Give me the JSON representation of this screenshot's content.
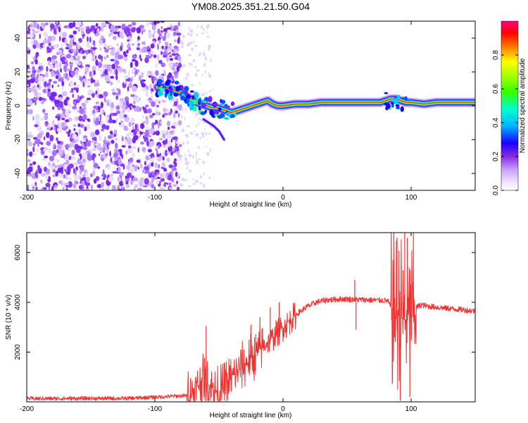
{
  "title": "YM08.2025.351.21.50.G04",
  "chart_data": [
    {
      "type": "heatmap",
      "name": "spectrogram",
      "xlabel": "Height of straight line (km)",
      "ylabel": "Frequency (Hz)",
      "xlim": [
        -200,
        150
      ],
      "ylim": [
        -50,
        50
      ],
      "xticks": [
        -200,
        -100,
        0,
        100
      ],
      "yticks": [
        -40,
        -20,
        0,
        20,
        40
      ],
      "noise_region": {
        "x_from": -200,
        "x_to": -80,
        "y_from": -50,
        "y_to": 50
      },
      "sparse_noise_region": {
        "x_from": -80,
        "x_to": -55
      },
      "ridge": {
        "x": [
          -98,
          -92,
          -88,
          -84,
          -80,
          -76,
          -72,
          -68,
          -64,
          -60,
          -56,
          -52,
          -48,
          -44,
          -40,
          -36,
          -32,
          -28,
          -24,
          -20,
          -16,
          -12,
          -8,
          -4,
          0,
          10,
          20,
          30,
          40,
          50,
          60,
          70,
          76,
          80,
          84,
          88,
          92,
          96,
          100,
          110,
          120,
          130,
          140,
          150
        ],
        "y": [
          11,
          11,
          10,
          9,
          8,
          6,
          4,
          2,
          1,
          0,
          -1,
          -1,
          -2,
          -3,
          -4,
          -3,
          -2,
          -1,
          0,
          1,
          2,
          3,
          1,
          0,
          0,
          1,
          1,
          2,
          2,
          2,
          2,
          2,
          2,
          3,
          4,
          4,
          3,
          2,
          2,
          1,
          2,
          2,
          2,
          2
        ]
      },
      "branch": {
        "x": [
          -62,
          -58,
          -54,
          -50,
          -46
        ],
        "y": [
          -8,
          -10,
          -12,
          -15,
          -20
        ]
      },
      "colorbar": {
        "label": "Normalized spectral amplitude",
        "range": [
          0,
          1
        ],
        "ticks": [
          "0.0",
          "0.2",
          "0.4",
          "0.6",
          "0.8"
        ]
      }
    },
    {
      "type": "line",
      "name": "snr",
      "xlabel": "Height of straight line (km)",
      "ylabel": "SNR (10 * v/v)",
      "xlim": [
        -200,
        150
      ],
      "ylim": [
        0,
        6800
      ],
      "xticks": [
        -200,
        -100,
        0,
        100
      ],
      "yticks": [
        2000,
        4000,
        6000
      ],
      "color": "#ee3333",
      "envelope": {
        "x": [
          -200,
          -120,
          -75,
          -70,
          -66,
          -62,
          -58,
          -54,
          -50,
          -46,
          -42,
          -38,
          -34,
          -30,
          -26,
          -22,
          -18,
          -14,
          -10,
          -6,
          -2,
          2,
          6,
          10,
          14,
          18,
          22,
          26,
          30,
          34,
          38,
          42,
          46,
          50,
          54,
          58,
          62,
          66,
          70,
          74,
          78,
          82,
          84,
          88,
          92,
          96,
          100,
          104,
          108,
          112,
          120,
          130,
          140,
          150
        ],
        "y": [
          130,
          140,
          250,
          400,
          700,
          900,
          700,
          500,
          400,
          600,
          900,
          1100,
          1300,
          1500,
          1700,
          1900,
          2100,
          2300,
          2500,
          2700,
          2900,
          3100,
          3300,
          3500,
          3650,
          3800,
          3900,
          4000,
          4050,
          4100,
          4100,
          4120,
          4130,
          4130,
          4120,
          4110,
          4100,
          4100,
          4090,
          4080,
          4080,
          4050,
          3800,
          3600,
          3400,
          3300,
          3500,
          3800,
          3900,
          3850,
          3800,
          3750,
          3700,
          3650
        ]
      },
      "noise_amplitude": [
        {
          "x_from": -200,
          "x_to": -75,
          "amp": 80
        },
        {
          "x_from": -75,
          "x_to": -15,
          "amp": 900
        },
        {
          "x_from": -15,
          "x_to": 10,
          "amp": 500
        },
        {
          "x_from": 10,
          "x_to": 84,
          "amp": 120
        },
        {
          "x_from": 84,
          "x_to": 104,
          "amp": 3000
        },
        {
          "x_from": 104,
          "x_to": 150,
          "amp": 120
        }
      ],
      "spikes": [
        {
          "x": -60,
          "y": 3050
        },
        {
          "x": -53,
          "y": 1150
        },
        {
          "x": -38,
          "y": 1700
        },
        {
          "x": -25,
          "y": 3100
        },
        {
          "x": -18,
          "y": 3400
        },
        {
          "x": -10,
          "y": 3800
        },
        {
          "x": -3,
          "y": 4000
        },
        {
          "x": 56,
          "y": 4900
        },
        {
          "x": 57,
          "y": 2900
        },
        {
          "x": 89,
          "y": 6600
        },
        {
          "x": 95,
          "y": 6800
        },
        {
          "x": 99,
          "y": 200
        }
      ]
    }
  ]
}
